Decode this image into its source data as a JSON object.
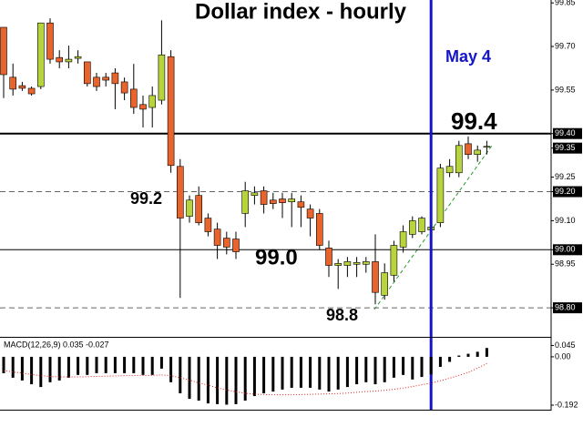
{
  "chart_data": [
    {
      "type": "candlestick",
      "title": "Dollar index - hourly",
      "open": [
        99.766,
        99.594,
        99.565,
        99.556,
        99.562,
        99.781,
        99.662,
        99.647,
        99.659,
        99.647,
        99.594,
        99.594,
        99.609,
        99.578,
        99.553,
        99.5,
        99.49,
        99.515,
        99.665,
        99.287,
        99.115,
        99.187,
        99.109,
        99.071,
        99.04,
        99.037,
        99.125,
        99.187,
        99.203,
        99.171,
        99.175,
        99.165,
        99.165,
        99.14,
        99.125,
        99.006,
        98.946,
        98.946,
        98.95,
        98.95,
        98.959,
        98.843,
        98.912,
        99.009,
        99.053,
        99.062,
        99.068,
        99.093,
        99.265,
        99.265,
        99.365,
        99.328,
        99.353
      ],
      "high": [
        99.766,
        99.641,
        99.578,
        99.562,
        99.781,
        99.797,
        99.687,
        99.703,
        99.687,
        99.647,
        99.609,
        99.609,
        99.625,
        99.593,
        99.64,
        99.531,
        99.562,
        99.79,
        99.687,
        99.312,
        99.187,
        99.218,
        99.125,
        99.093,
        99.062,
        99.062,
        99.234,
        99.218,
        99.218,
        99.196,
        99.196,
        99.196,
        99.187,
        99.156,
        99.14,
        99.031,
        98.968,
        98.975,
        98.975,
        98.975,
        99.053,
        98.953,
        99.031,
        99.084,
        99.115,
        99.115,
        99.093,
        99.296,
        99.312,
        99.375,
        99.39,
        99.359,
        99.375
      ],
      "low": [
        99.522,
        99.531,
        99.547,
        99.531,
        99.553,
        99.641,
        99.625,
        99.625,
        99.641,
        99.562,
        99.547,
        99.562,
        99.484,
        99.515,
        99.468,
        99.421,
        99.421,
        99.5,
        99.265,
        98.834,
        99.093,
        99.084,
        99.046,
        98.968,
        98.984,
        98.968,
        99.078,
        99.156,
        99.125,
        99.14,
        99.109,
        99.078,
        99.078,
        99.046,
        98.999,
        98.906,
        98.865,
        98.906,
        98.906,
        98.921,
        98.812,
        98.828,
        98.89,
        98.99,
        99.04,
        99.053,
        99.053,
        99.078,
        99.25,
        99.25,
        99.312,
        99.303,
        99.328
      ],
      "close": [
        99.603,
        99.553,
        99.556,
        99.537,
        99.781,
        99.656,
        99.647,
        99.656,
        99.665,
        99.572,
        99.562,
        99.584,
        99.572,
        99.54,
        99.49,
        99.484,
        99.531,
        99.671,
        99.29,
        99.109,
        99.171,
        99.093,
        99.062,
        99.015,
        99.009,
        98.993,
        99.203,
        99.196,
        99.156,
        99.159,
        99.162,
        99.175,
        99.146,
        99.109,
        99.015,
        98.946,
        98.953,
        98.959,
        98.956,
        98.959,
        98.853,
        98.921,
        99.015,
        99.062,
        99.1,
        99.109,
        99.078,
        99.281,
        99.287,
        99.359,
        99.328,
        99.343,
        99.356
      ],
      "up_color": "#b8d43c",
      "down_color": "#e8642c",
      "ylim": [
        98.7,
        99.86
      ],
      "yticks": [
        {
          "value": 99.85,
          "label": "99.85"
        },
        {
          "value": 99.7,
          "label": "99.70"
        },
        {
          "value": 99.55,
          "label": "99.55"
        },
        {
          "value": 99.4,
          "label": "99.40",
          "boxed": true
        },
        {
          "value": 99.35,
          "label": "99.35",
          "boxed": true
        },
        {
          "value": 99.25,
          "label": "99.25"
        },
        {
          "value": 99.2,
          "label": "99.20",
          "boxed": true
        },
        {
          "value": 99.1,
          "label": "99.10"
        },
        {
          "value": 99.0,
          "label": "99.00",
          "boxed": true
        },
        {
          "value": 98.95,
          "label": "98.95"
        },
        {
          "value": 98.8,
          "label": "98.80",
          "boxed": true
        }
      ],
      "levels": [
        {
          "value": 99.4,
          "style": "thick"
        },
        {
          "value": 99.2,
          "style": "dashed"
        },
        {
          "value": 99.0,
          "style": "solid"
        },
        {
          "value": 98.8,
          "style": "dashed"
        }
      ],
      "annotations": [
        "99.4",
        "99.2",
        "99.0",
        "98.8"
      ],
      "marker": {
        "label": "May 4",
        "color": "#1414c8"
      }
    },
    {
      "type": "macd",
      "label": "MACD(12,26,9) 0.035 -0.027",
      "color": "#000000",
      "values": [
        -0.065,
        -0.083,
        -0.094,
        -0.109,
        -0.12,
        -0.101,
        -0.094,
        -0.083,
        -0.072,
        -0.072,
        -0.065,
        -0.065,
        -0.065,
        -0.065,
        -0.065,
        -0.072,
        -0.072,
        -0.047,
        -0.101,
        -0.145,
        -0.167,
        -0.174,
        -0.185,
        -0.188,
        -0.19,
        -0.188,
        -0.174,
        -0.156,
        -0.145,
        -0.138,
        -0.13,
        -0.123,
        -0.123,
        -0.123,
        -0.13,
        -0.138,
        -0.13,
        -0.12,
        -0.109,
        -0.101,
        -0.109,
        -0.101,
        -0.083,
        -0.072,
        -0.09,
        -0.08,
        -0.07,
        -0.04,
        -0.02,
        0.005,
        0.012,
        0.02,
        0.035
      ],
      "signal": {
        "color": "#e02020",
        "values": [
          -0.055,
          -0.06,
          -0.065,
          -0.07,
          -0.075,
          -0.078,
          -0.08,
          -0.08,
          -0.08,
          -0.079,
          -0.078,
          -0.077,
          -0.076,
          -0.075,
          -0.074,
          -0.074,
          -0.074,
          -0.072,
          -0.075,
          -0.083,
          -0.093,
          -0.103,
          -0.113,
          -0.123,
          -0.132,
          -0.139,
          -0.145,
          -0.148,
          -0.15,
          -0.151,
          -0.151,
          -0.151,
          -0.15,
          -0.149,
          -0.148,
          -0.147,
          -0.146,
          -0.144,
          -0.141,
          -0.138,
          -0.136,
          -0.133,
          -0.129,
          -0.124,
          -0.118,
          -0.111,
          -0.104,
          -0.095,
          -0.085,
          -0.074,
          -0.062,
          -0.045,
          -0.027
        ]
      },
      "ylim": [
        -0.21,
        0.072
      ],
      "yticks": [
        {
          "value": 0.045,
          "label": "0.045"
        },
        {
          "value": 0,
          "label": "0.00"
        },
        {
          "value": -0.192,
          "label": "-0.192"
        }
      ]
    }
  ]
}
